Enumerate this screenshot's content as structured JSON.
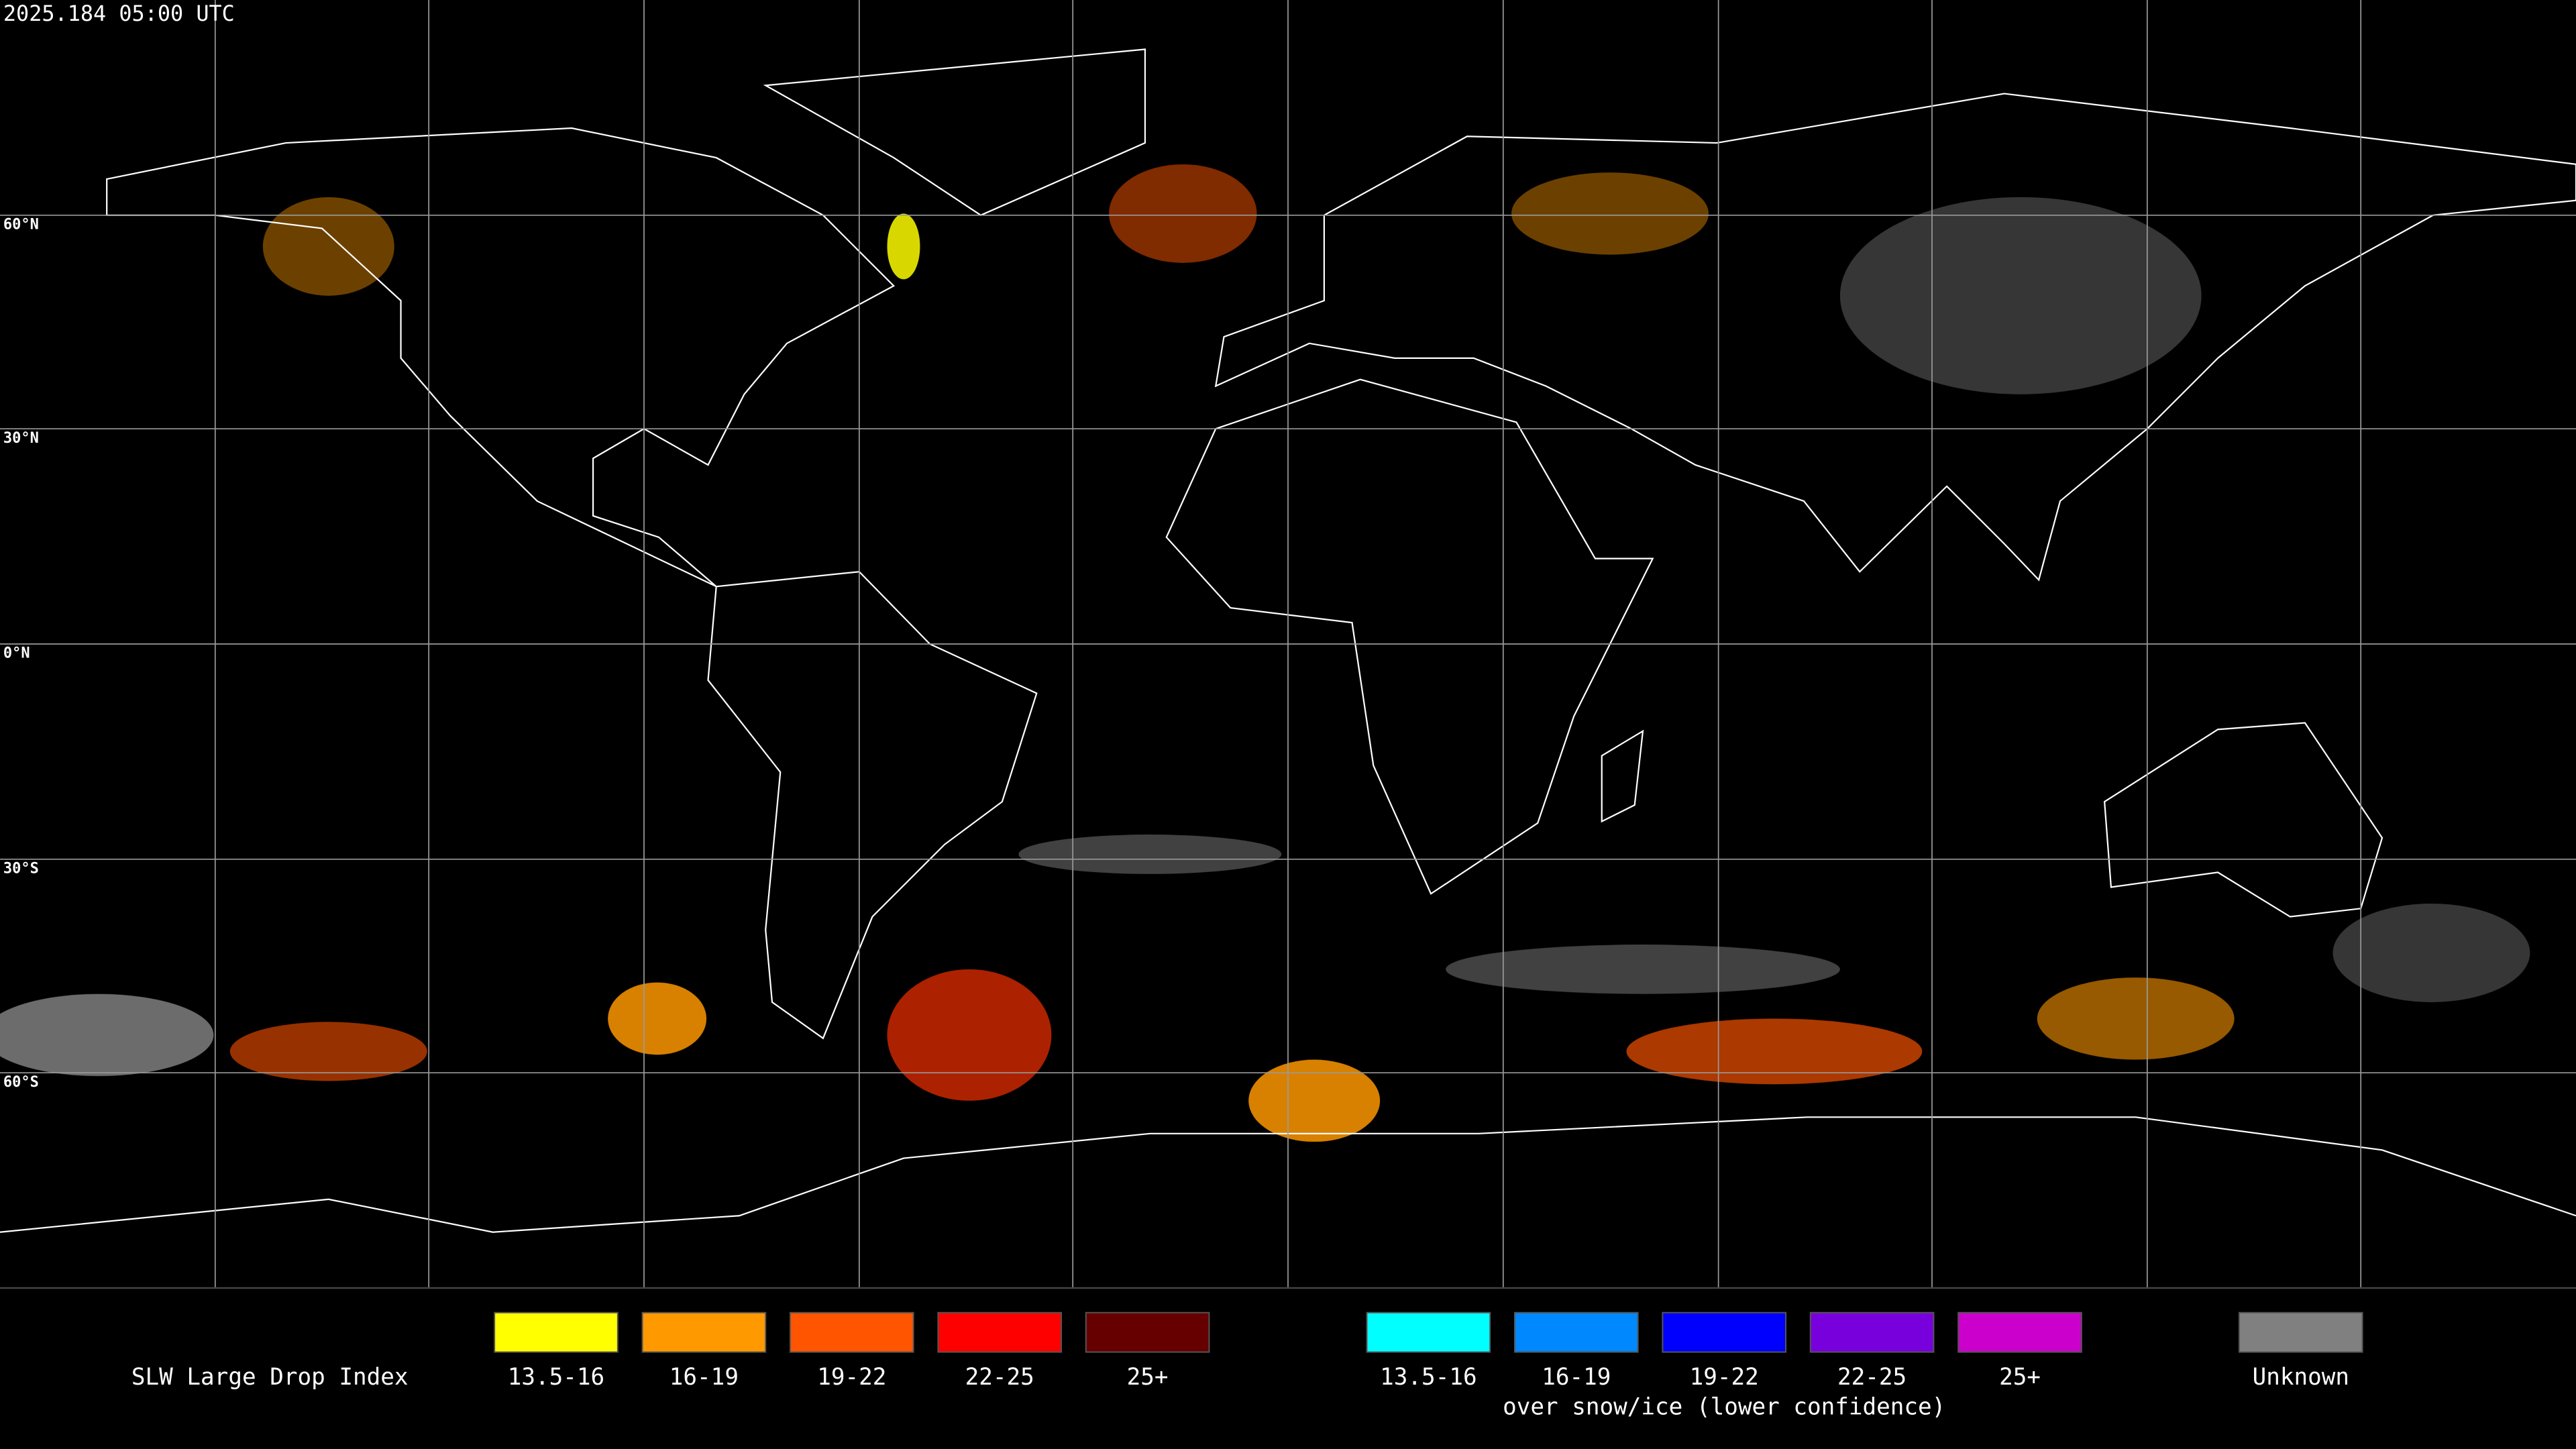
{
  "header": {
    "timestamp": "2025.184 05:00 UTC"
  },
  "map": {
    "lat_labels": [
      "60°N",
      "30°N",
      "0°N",
      "30°S",
      "60°S"
    ]
  },
  "legend": {
    "title": "SLW Large Drop Index",
    "groups": [
      {
        "items": [
          {
            "label": "13.5-16",
            "color": "#ffff00"
          },
          {
            "label": "16-19",
            "color": "#ff9900"
          },
          {
            "label": "19-22",
            "color": "#ff5500"
          },
          {
            "label": "22-25",
            "color": "#ff0000"
          },
          {
            "label": "25+",
            "color": "#660000"
          }
        ]
      },
      {
        "items": [
          {
            "label": "13.5-16",
            "color": "#00ffff"
          },
          {
            "label": "16-19",
            "color": "#0088ff"
          },
          {
            "label": "19-22",
            "color": "#0000ff"
          },
          {
            "label": "22-25",
            "color": "#7700dd"
          },
          {
            "label": "25+",
            "color": "#cc00cc"
          }
        ],
        "caption": "over snow/ice (lower confidence)"
      },
      {
        "items": [
          {
            "label": "Unknown",
            "color": "#808080"
          }
        ]
      }
    ]
  }
}
